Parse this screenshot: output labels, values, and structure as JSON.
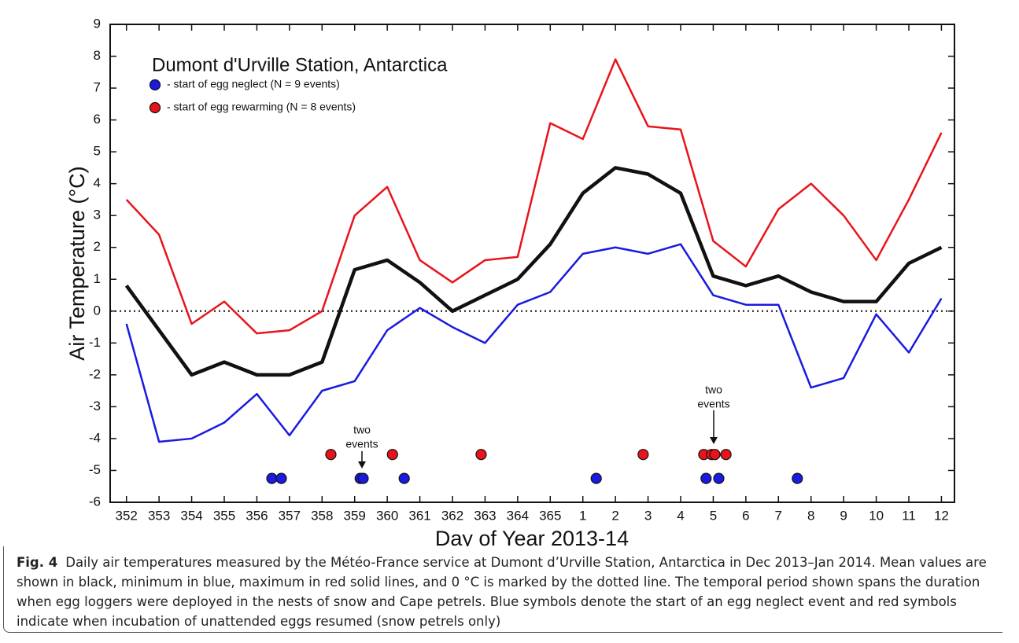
{
  "chart_data": {
    "type": "line",
    "title": "Dumont d'Urville Station, Antarctica",
    "x_label": "Day of Year 2013-14",
    "y_label": "Air Temperature (°C)",
    "x": [
      0,
      1,
      2,
      3,
      4,
      5,
      6,
      7,
      8,
      9,
      10,
      11,
      12,
      13,
      14,
      15,
      16,
      17,
      18,
      19,
      20,
      21,
      22,
      23,
      24,
      25
    ],
    "xlim": [
      -0.5,
      25.4
    ],
    "xticks": [
      {
        "value": 0,
        "label": "352"
      },
      {
        "value": 1,
        "label": "353"
      },
      {
        "value": 2,
        "label": "354"
      },
      {
        "value": 3,
        "label": "355"
      },
      {
        "value": 4,
        "label": "356"
      },
      {
        "value": 5,
        "label": "357"
      },
      {
        "value": 6,
        "label": "358"
      },
      {
        "value": 7,
        "label": "359"
      },
      {
        "value": 8,
        "label": "360"
      },
      {
        "value": 9,
        "label": "361"
      },
      {
        "value": 10,
        "label": "362"
      },
      {
        "value": 11,
        "label": "363"
      },
      {
        "value": 12,
        "label": "364"
      },
      {
        "value": 13,
        "label": "365"
      },
      {
        "value": 14,
        "label": "1"
      },
      {
        "value": 15,
        "label": "2"
      },
      {
        "value": 16,
        "label": "3"
      },
      {
        "value": 17,
        "label": "4"
      },
      {
        "value": 18,
        "label": "5"
      },
      {
        "value": 19,
        "label": "6"
      },
      {
        "value": 20,
        "label": "7"
      },
      {
        "value": 21,
        "label": "8"
      },
      {
        "value": 22,
        "label": "9"
      },
      {
        "value": 23,
        "label": "10"
      },
      {
        "value": 24,
        "label": "11"
      },
      {
        "value": 25,
        "label": "12"
      }
    ],
    "ylim": [
      -6,
      9
    ],
    "yticks": [
      -6,
      -5,
      -4,
      -3,
      -2,
      -1,
      0,
      1,
      2,
      3,
      4,
      5,
      6,
      7,
      8,
      9
    ],
    "reference_line": 0,
    "series": [
      {
        "color": "#e8141b",
        "width": 2.5,
        "values": [
          3.5,
          2.4,
          -0.4,
          0.3,
          -0.7,
          -0.6,
          0,
          3.0,
          3.9,
          1.6,
          0.9,
          1.6,
          1.7,
          5.9,
          5.4,
          7.9,
          5.8,
          5.7,
          2.2,
          1.4,
          3.2,
          4.0,
          3.0,
          1.6,
          3.5,
          5.6
        ]
      },
      {
        "color": "#111111",
        "width": 4.5,
        "values": [
          0.8,
          -0.6,
          -2.0,
          -1.6,
          -2.0,
          -2.0,
          -1.6,
          1.3,
          1.6,
          0.9,
          0.0,
          0.5,
          1.0,
          2.1,
          3.7,
          4.5,
          4.3,
          3.7,
          1.1,
          0.8,
          1.1,
          0.6,
          0.3,
          0.3,
          1.5,
          2.0
        ]
      },
      {
        "color": "#1a1ae0",
        "width": 2.5,
        "values": [
          -0.4,
          -4.1,
          -4.0,
          -3.5,
          -2.6,
          -3.9,
          -2.5,
          -2.2,
          -0.6,
          0.1,
          -0.5,
          -1.0,
          0.2,
          0.6,
          1.8,
          2.0,
          1.8,
          2.1,
          0.5,
          0.2,
          0.2,
          -2.4,
          -2.1,
          -0.1,
          -1.3,
          0.4
        ]
      }
    ],
    "events": [
      {
        "name": "- start of egg neglect (N = 9 events)",
        "color": "#1a1ae0",
        "x": [
          4.46,
          4.75,
          7.17,
          7.26,
          8.52,
          14.41,
          17.78,
          18.17,
          20.58
        ],
        "y": [
          -5.25,
          -5.25,
          -5.25,
          -5.25,
          -5.25,
          -5.25,
          -5.25,
          -5.25,
          -5.25
        ]
      },
      {
        "name": "- start of egg rewarming (N = 8 events)",
        "color": "#e8141b",
        "x": [
          6.27,
          8.16,
          10.88,
          15.85,
          17.71,
          17.95,
          18.05,
          18.39
        ],
        "y": [
          -4.5,
          -4.5,
          -4.5,
          -4.5,
          -4.5,
          -4.5,
          -4.5,
          -4.5
        ]
      }
    ],
    "annotations": [
      [
        "two",
        "events"
      ],
      [
        "two",
        "events"
      ]
    ]
  },
  "caption": {
    "label": "Fig. 4",
    "text": "Daily air temperatures measured by the Météo-France service at Dumont d’Urville Station, Antarctica in Dec 2013–Jan 2014. Mean values are shown in black, minimum in blue, maximum in red solid lines, and 0 °C is marked by the dotted line. The temporal period shown spans the duration when egg loggers were deployed in the nests of snow and Cape petrels. Blue symbols denote the start of an egg neglect event and red symbols indicate when incubation of unattended eggs resumed (snow petrels only)"
  }
}
